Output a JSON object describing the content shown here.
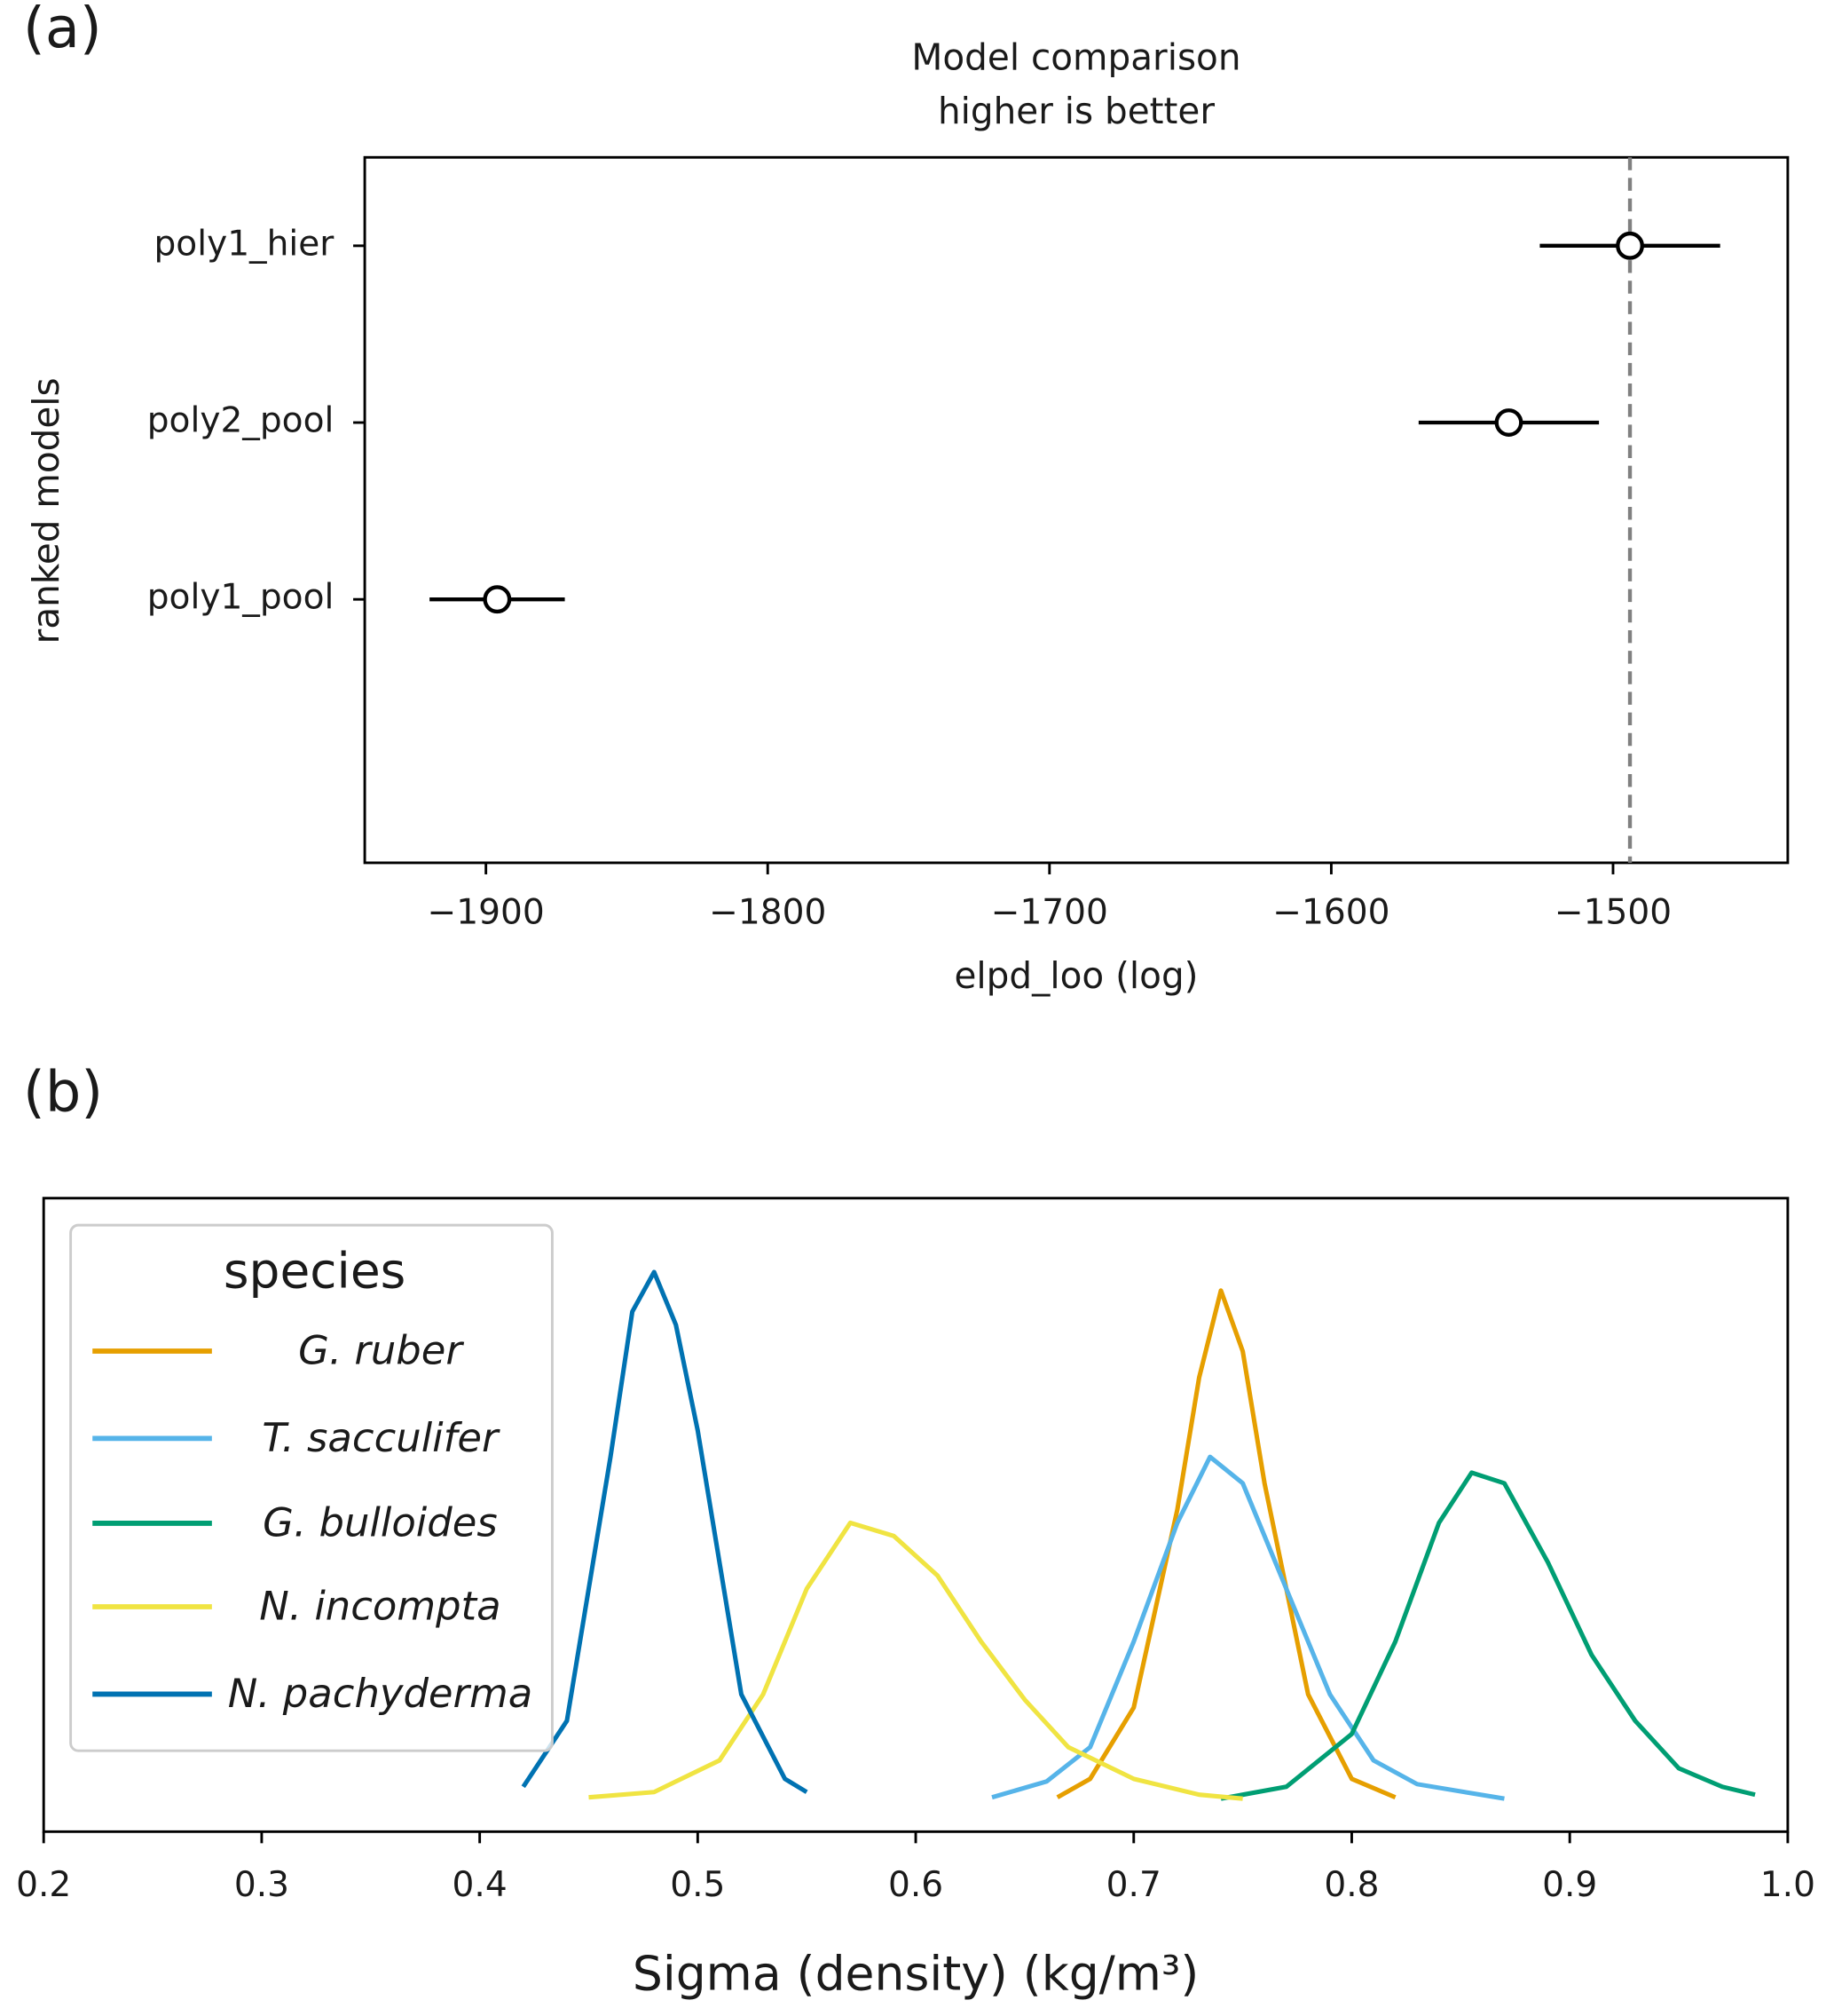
{
  "chart_data": [
    {
      "type": "errorbar",
      "panel_label": "(a)",
      "title": [
        "Model comparison",
        "higher is better"
      ],
      "xlabel": "elpd_loo (log)",
      "ylabel": "ranked models",
      "categories": [
        "poly1_hier",
        "poly2_pool",
        "poly1_pool"
      ],
      "values": [
        -1494,
        -1537,
        -1896
      ],
      "errors": [
        32,
        32,
        24
      ],
      "reference_line": -1494,
      "color": "#000000",
      "xlim": [
        -1943,
        -1438
      ],
      "xticks": [
        {
          "value": -1900,
          "label": "−1900"
        },
        {
          "value": -1800,
          "label": "−1800"
        },
        {
          "value": -1700,
          "label": "−1700"
        },
        {
          "value": -1600,
          "label": "−1600"
        },
        {
          "value": -1500,
          "label": "−1500"
        }
      ]
    },
    {
      "type": "line",
      "panel_label": "(b)",
      "xlabel": "Sigma (density) (kg/m³)",
      "legend_title": "species",
      "legend": "upper left",
      "xlim": [
        0.2,
        1.0
      ],
      "ylim": [
        -1.2,
        22.8
      ],
      "xticks": [
        0.2,
        0.3,
        0.4,
        0.5,
        0.6,
        0.7,
        0.8,
        0.9,
        {
          "value": 1,
          "label": "1.0"
        }
      ],
      "series": [
        {
          "name": "G. ruber",
          "color": "#E69F00",
          "x": [
            0.665,
            0.68,
            0.7,
            0.72,
            0.73,
            0.74,
            0.75,
            0.76,
            0.78,
            0.8,
            0.82
          ],
          "values": [
            0.1,
            0.8,
            3.5,
            11,
            16,
            19.3,
            17,
            12,
            4,
            0.8,
            0.1
          ]
        },
        {
          "name": "T. sacculifer",
          "color": "#56B4E9",
          "x": [
            0.635,
            0.66,
            0.68,
            0.7,
            0.72,
            0.735,
            0.75,
            0.77,
            0.79,
            0.81,
            0.83,
            0.87
          ],
          "values": [
            0.1,
            0.7,
            2,
            6,
            10.5,
            13,
            12,
            8,
            4,
            1.5,
            0.6,
            0.05
          ]
        },
        {
          "name": "G. bulloides",
          "color": "#009E73",
          "x": [
            0.74,
            0.77,
            0.8,
            0.82,
            0.84,
            0.855,
            0.87,
            0.89,
            0.91,
            0.93,
            0.95,
            0.97,
            0.985
          ],
          "values": [
            0.05,
            0.5,
            2.5,
            6,
            10.5,
            12.4,
            12,
            9,
            5.5,
            3,
            1.2,
            0.5,
            0.2
          ]
        },
        {
          "name": "N. incompta",
          "color": "#F0E442",
          "x": [
            0.45,
            0.48,
            0.51,
            0.53,
            0.55,
            0.57,
            0.59,
            0.61,
            0.63,
            0.65,
            0.67,
            0.7,
            0.73,
            0.75
          ],
          "values": [
            0.1,
            0.3,
            1.5,
            4,
            8,
            10.5,
            10,
            8.5,
            6,
            3.8,
            2,
            0.8,
            0.2,
            0.05
          ]
        },
        {
          "name": "N. pachyderma",
          "color": "#0072B2",
          "x": [
            0.42,
            0.44,
            0.46,
            0.47,
            0.48,
            0.49,
            0.5,
            0.52,
            0.54,
            0.55
          ],
          "values": [
            0.5,
            3,
            13,
            18.5,
            20,
            18,
            14,
            4,
            0.8,
            0.3
          ]
        }
      ]
    }
  ]
}
